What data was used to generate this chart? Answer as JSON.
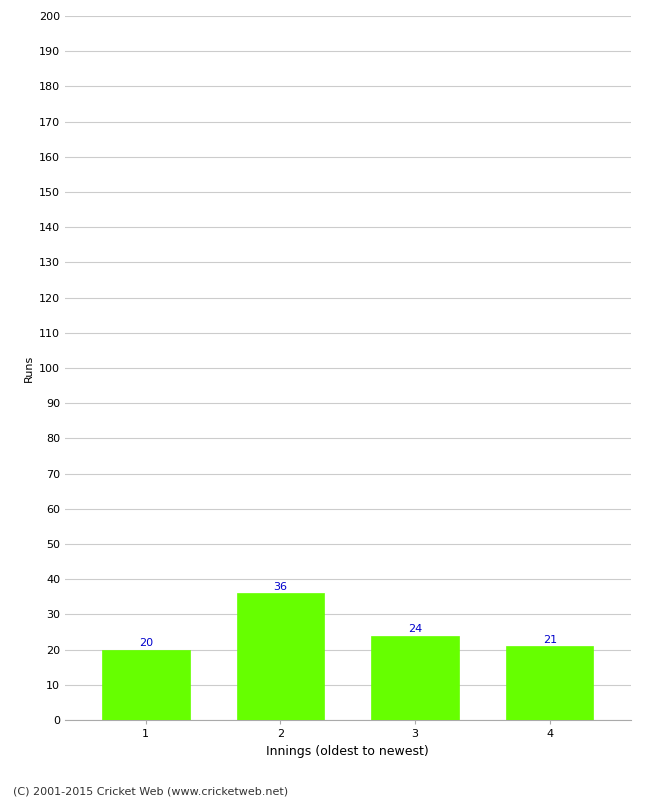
{
  "categories": [
    "1",
    "2",
    "3",
    "4"
  ],
  "values": [
    20,
    36,
    24,
    21
  ],
  "bar_color": "#66ff00",
  "bar_edgecolor": "#66ff00",
  "label_color": "#0000cc",
  "label_fontsize": 8,
  "xlabel": "Innings (oldest to newest)",
  "ylabel": "Runs",
  "ylim": [
    0,
    200
  ],
  "yticks": [
    0,
    10,
    20,
    30,
    40,
    50,
    60,
    70,
    80,
    90,
    100,
    110,
    120,
    130,
    140,
    150,
    160,
    170,
    180,
    190,
    200
  ],
  "grid_color": "#cccccc",
  "background_color": "#ffffff",
  "footer_text": "(C) 2001-2015 Cricket Web (www.cricketweb.net)",
  "footer_fontsize": 8,
  "footer_color": "#333333",
  "xlabel_fontsize": 9,
  "ylabel_fontsize": 8,
  "tick_fontsize": 8,
  "bar_width": 0.65
}
